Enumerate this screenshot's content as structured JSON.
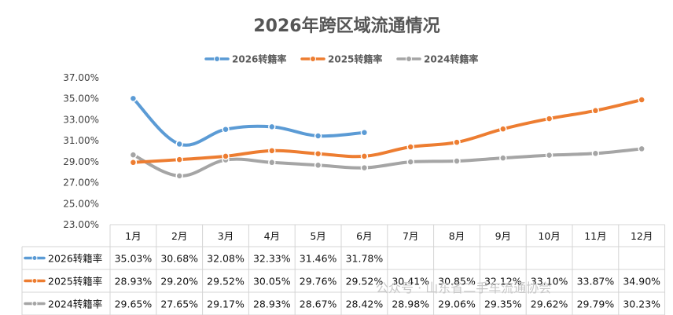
{
  "chart_data": {
    "type": "line",
    "title": "2026年跨区域流通情况",
    "categories": [
      "1月",
      "2月",
      "3月",
      "4月",
      "5月",
      "6月",
      "7月",
      "8月",
      "9月",
      "10月",
      "11月",
      "12月"
    ],
    "series": [
      {
        "name": "2026转籍率",
        "color": "#5b9bd5",
        "values": [
          35.03,
          30.68,
          32.08,
          32.33,
          31.46,
          31.78,
          null,
          null,
          null,
          null,
          null,
          null
        ],
        "labels": [
          "35.03%",
          "30.68%",
          "32.08%",
          "32.33%",
          "31.46%",
          "31.78%",
          "",
          "",
          "",
          "",
          "",
          ""
        ]
      },
      {
        "name": "2025转籍率",
        "color": "#ed7d31",
        "values": [
          28.93,
          29.2,
          29.52,
          30.05,
          29.76,
          29.52,
          30.41,
          30.85,
          32.12,
          33.1,
          33.87,
          34.9
        ],
        "labels": [
          "28.93%",
          "29.20%",
          "29.52%",
          "30.05%",
          "29.76%",
          "29.52%",
          "30.41%",
          "30.85%",
          "32.12%",
          "33.10%",
          "33.87%",
          "34.90%"
        ]
      },
      {
        "name": "2024转籍率",
        "color": "#a5a5a5",
        "values": [
          29.65,
          27.65,
          29.17,
          28.93,
          28.67,
          28.42,
          28.98,
          29.06,
          29.35,
          29.62,
          29.79,
          30.23
        ],
        "labels": [
          "29.65%",
          "27.65%",
          "29.17%",
          "28.93%",
          "28.67%",
          "28.42%",
          "28.98%",
          "29.06%",
          "29.35%",
          "29.62%",
          "29.79%",
          "30.23%"
        ]
      }
    ],
    "ylim": [
      23,
      37
    ],
    "yticks": [
      "23.00%",
      "25.00%",
      "27.00%",
      "29.00%",
      "31.00%",
      "33.00%",
      "35.00%",
      "37.00%"
    ],
    "legend_position": "top",
    "grid": false,
    "data_table": true
  },
  "watermark": "公众号 · 山东省二手车流通协会"
}
